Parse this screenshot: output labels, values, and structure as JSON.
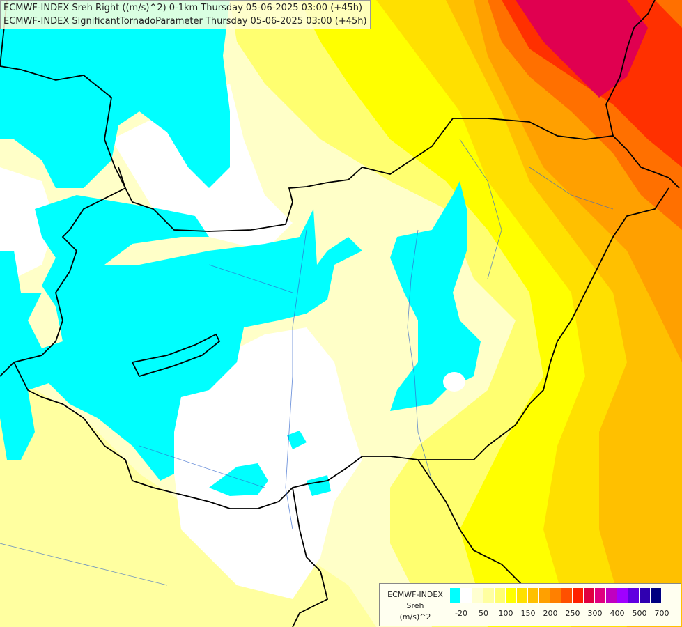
{
  "title": {
    "line1": "ECMWF-INDEX Sreh Right ((m/s)^2) 0-1km Thursday 05-06-2025 03:00 (+45h)",
    "line2": "ECMWF-INDEX SignificantTornadoParameter Thursday 05-06-2025 03:00 (+45h)"
  },
  "legend": {
    "line1": "ECMWF-INDEX",
    "line2": "Sreh",
    "line3": "(m/s)^2",
    "colors": [
      "#00ffff",
      "#ffffff",
      "#ffffd0",
      "#ffffa0",
      "#ffff70",
      "#ffff00",
      "#ffe000",
      "#ffc000",
      "#ffa000",
      "#ff8000",
      "#ff5000",
      "#ff2000",
      "#e00040",
      "#e00080",
      "#c000c0",
      "#a000ff",
      "#6000e0",
      "#3000b0",
      "#000080"
    ],
    "ticks": [
      "-20",
      "50",
      "100",
      "150",
      "200",
      "250",
      "300",
      "400",
      "500",
      "700"
    ]
  },
  "colors": {
    "negative": "#00ffff",
    "neutral": "#ffffff",
    "low": "#ffffa8",
    "mid": "#ffff00",
    "high": "#ffa000",
    "very_high": "#ff2000",
    "extreme": "#e00060"
  }
}
